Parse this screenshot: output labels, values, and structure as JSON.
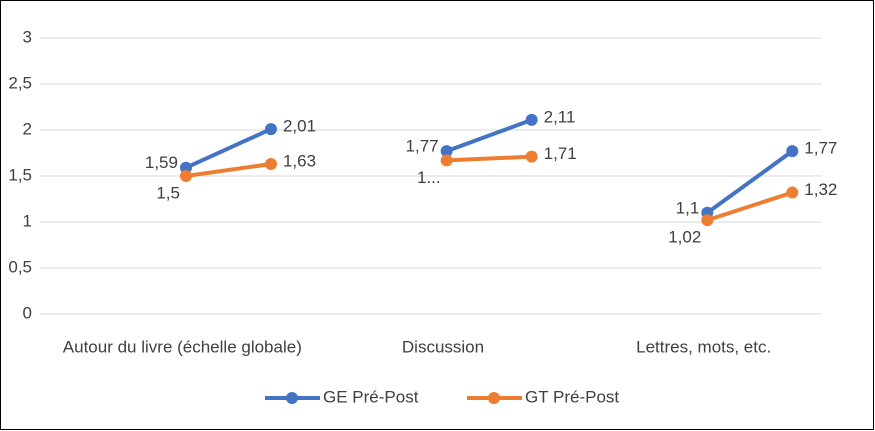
{
  "chart_data": {
    "type": "line",
    "categories": [
      "Autour du livre (échelle globale)",
      "Discussion",
      "Lettres, mots, etc."
    ],
    "series": [
      {
        "name": "GE Pré-Post",
        "color": "#4472c4",
        "values": [
          [
            1.59,
            2.01
          ],
          [
            1.77,
            2.11
          ],
          [
            1.1,
            1.77
          ]
        ],
        "value_labels": [
          [
            "1,59",
            "2,01"
          ],
          [
            "1,77",
            "2,11"
          ],
          [
            "1,1",
            "1,77"
          ]
        ]
      },
      {
        "name": "GT Pré-Post",
        "color": "#ed7d31",
        "values": [
          [
            1.5,
            1.63
          ],
          [
            1.67,
            1.71
          ],
          [
            1.02,
            1.32
          ]
        ],
        "value_labels": [
          [
            "1,5",
            "1,63"
          ],
          [
            "1...",
            "1,71"
          ],
          [
            "1,02",
            "1,32"
          ]
        ]
      }
    ],
    "ylim": [
      0,
      3
    ],
    "yticks": [
      0,
      {
        "value": 0.5,
        "label": "0,5"
      },
      1,
      {
        "value": 1.5,
        "label": "1,5"
      },
      2,
      {
        "value": 2.5,
        "label": "2,5"
      },
      3
    ],
    "grid": true,
    "legend": "bottom"
  }
}
